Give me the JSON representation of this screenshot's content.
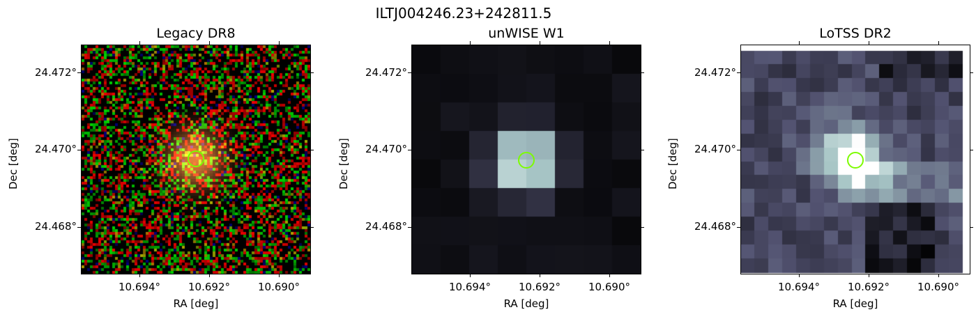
{
  "figure_title": "ILTJ004246.23+242811.5",
  "panels": [
    {
      "title": "Legacy DR8",
      "xlabel": "RA [deg]",
      "ylabel": "Dec [deg]",
      "xticks": [
        "10.694°",
        "10.692°",
        "10.690°"
      ],
      "yticks": [
        "24.472°",
        "24.470°",
        "24.468°"
      ],
      "style": "noise-rgb"
    },
    {
      "title": "unWISE W1",
      "xlabel": "RA [deg]",
      "ylabel": "Dec [deg]",
      "xticks": [
        "10.694°",
        "10.692°",
        "10.690°"
      ],
      "yticks": [
        "24.472°",
        "24.470°",
        "24.468°"
      ],
      "style": "coarse-bone"
    },
    {
      "title": "LoTSS DR2",
      "xlabel": "RA [deg]",
      "ylabel": "Dec [deg]",
      "xticks": [
        "10.694°",
        "10.692°",
        "10.690°"
      ],
      "yticks": [
        "24.472°",
        "24.470°",
        "24.468°"
      ],
      "style": "smooth-bone"
    }
  ],
  "colors": {
    "marker": "#7CFC00",
    "background": "#ffffff"
  }
}
